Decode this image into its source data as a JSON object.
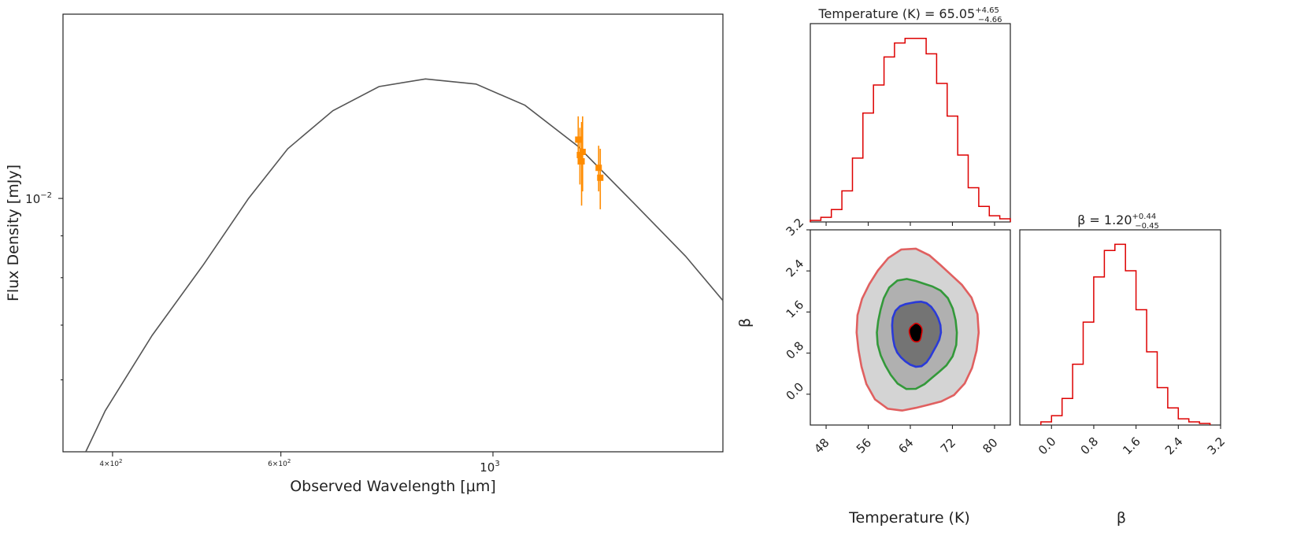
{
  "chart_data": [
    {
      "type": "line",
      "xscale": "log",
      "yscale": "log",
      "xlabel": "Observed Wavelength [μm]",
      "ylabel": "Flux Density [mJy]",
      "xlim": [
        355,
        1740
      ],
      "ylim": [
        0.0049,
        0.0168
      ],
      "x_ticks": [
        {
          "value": 400,
          "base": "4×10",
          "exp": "2"
        },
        {
          "value": 600,
          "base": "6×10",
          "exp": "2"
        },
        {
          "value": 1000,
          "base": "10",
          "exp": "3"
        }
      ],
      "y_ticks": [
        {
          "value": 0.01,
          "base": "10",
          "exp": "−2"
        }
      ],
      "y_minor_ticks": [
        0.006,
        0.007,
        0.008,
        0.009
      ],
      "series": [
        {
          "name": "model",
          "color": "#555555",
          "x": [
            375,
            393,
            440,
            498,
            555,
            610,
            680,
            760,
            850,
            960,
            1080,
            1225,
            1400,
            1590,
            1740
          ],
          "y": [
            0.0049,
            0.0055,
            0.0068,
            0.0083,
            0.01,
            0.0115,
            0.0128,
            0.0137,
            0.014,
            0.0138,
            0.013,
            0.0116,
            0.0099,
            0.0085,
            0.0075
          ]
        },
        {
          "name": "observations",
          "color": "#ff8c00",
          "x": [
            1228,
            1233,
            1238,
            1241,
            1290,
            1295
          ],
          "y": [
            0.0118,
            0.0113,
            0.0111,
            0.0114,
            0.0109,
            0.0106
          ],
          "yerr": [
            0.0008,
            0.0009,
            0.0013,
            0.0012,
            0.0007,
            0.0009
          ]
        }
      ]
    },
    {
      "type": "corner",
      "parameters": [
        "Temperature (K)",
        "β"
      ],
      "titles": [
        {
          "main": "Temperature (K) = 65.05",
          "sup": "+4.65",
          "sub": "−4.66"
        },
        {
          "main": "β = 1.20",
          "sup": "+0.44",
          "sub": "−0.45"
        }
      ],
      "line_color": "#dd0000",
      "temperature_hist": {
        "range": [
          45,
          83
        ],
        "ticks": [
          "48",
          "56",
          "64",
          "72",
          "80"
        ],
        "bin_edges": [
          45,
          47,
          49,
          51,
          53,
          55,
          57,
          59,
          61,
          63,
          65,
          67,
          69,
          71,
          73,
          75,
          77,
          79,
          81,
          83
        ],
        "counts": [
          1,
          3,
          8,
          20,
          41,
          70,
          88,
          106,
          115,
          118,
          118,
          108,
          89,
          68,
          43,
          22,
          10,
          4,
          2
        ]
      },
      "beta_hist": {
        "range": [
          -0.6,
          3.2
        ],
        "ticks": [
          "0.0",
          "0.8",
          "1.6",
          "2.4",
          "3.2"
        ],
        "bin_edges": [
          -0.2,
          0.0,
          0.2,
          0.4,
          0.6,
          0.8,
          1.0,
          1.2,
          1.4,
          1.6,
          1.8,
          2.0,
          2.2,
          2.4,
          2.6,
          2.8,
          3.0
        ],
        "counts": [
          2,
          6,
          17,
          39,
          66,
          95,
          112,
          116,
          99,
          74,
          47,
          24,
          11,
          4,
          2,
          1
        ]
      },
      "contour_2d": {
        "center": {
          "temperature": 65.05,
          "beta": 1.2
        },
        "y_ticks": [
          "0.0",
          "0.8",
          "1.6",
          "2.4",
          "3.2"
        ],
        "levels": [
          {
            "line": "#e06060",
            "fill": "#d4d4d4",
            "half_width_T": 11.6,
            "half_height_beta": 1.55
          },
          {
            "line": "#33993a",
            "fill": "#b0b0b0",
            "half_width_T": 7.6,
            "half_height_beta": 1.05
          },
          {
            "line": "#2a3ad8",
            "fill": "#747474",
            "half_width_T": 4.6,
            "half_height_beta": 0.63
          },
          {
            "line": "#dd0000",
            "fill": "#000000",
            "half_width_T": 1.2,
            "half_height_beta": 0.18
          }
        ]
      }
    }
  ]
}
